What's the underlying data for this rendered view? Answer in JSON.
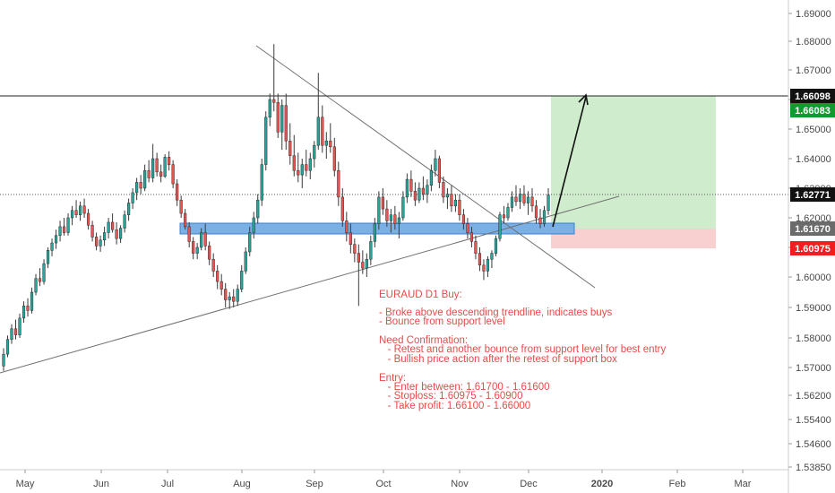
{
  "chart_data": {
    "type": "candlestick",
    "title": "",
    "xlabel": "",
    "ylabel": "",
    "ylim": [
      1.5385,
      1.6985
    ],
    "y_ticks": [
      "1.69000",
      "1.68000",
      "1.67000",
      "1.66000",
      "1.65000",
      "1.64000",
      "1.63000",
      "1.62000",
      "1.61000",
      "1.60000",
      "1.59000",
      "1.58000",
      "1.57000",
      "1.56200",
      "1.55400",
      "1.54600",
      "1.53850"
    ],
    "x_ticks": [
      "May",
      "Jun",
      "Jul",
      "Aug",
      "Sep",
      "Oct",
      "Nov",
      "Dec",
      "2020",
      "Feb",
      "Mar"
    ],
    "grid": false,
    "candles": [
      {
        "o": 1.5705,
        "h": 1.5765,
        "l": 1.569,
        "c": 1.5745
      },
      {
        "o": 1.5745,
        "h": 1.5808,
        "l": 1.5735,
        "c": 1.5795
      },
      {
        "o": 1.5795,
        "h": 1.5845,
        "l": 1.578,
        "c": 1.583
      },
      {
        "o": 1.583,
        "h": 1.586,
        "l": 1.5795,
        "c": 1.581
      },
      {
        "o": 1.581,
        "h": 1.588,
        "l": 1.58,
        "c": 1.5865
      },
      {
        "o": 1.5865,
        "h": 1.592,
        "l": 1.585,
        "c": 1.5905
      },
      {
        "o": 1.5905,
        "h": 1.593,
        "l": 1.587,
        "c": 1.589
      },
      {
        "o": 1.589,
        "h": 1.5965,
        "l": 1.588,
        "c": 1.595
      },
      {
        "o": 1.595,
        "h": 1.601,
        "l": 1.594,
        "c": 1.5995
      },
      {
        "o": 1.5995,
        "h": 1.603,
        "l": 1.597,
        "c": 1.5985
      },
      {
        "o": 1.5985,
        "h": 1.606,
        "l": 1.5975,
        "c": 1.6045
      },
      {
        "o": 1.6045,
        "h": 1.61,
        "l": 1.603,
        "c": 1.609
      },
      {
        "o": 1.609,
        "h": 1.613,
        "l": 1.607,
        "c": 1.6115
      },
      {
        "o": 1.6115,
        "h": 1.616,
        "l": 1.6095,
        "c": 1.614
      },
      {
        "o": 1.614,
        "h": 1.619,
        "l": 1.612,
        "c": 1.617
      },
      {
        "o": 1.617,
        "h": 1.62,
        "l": 1.614,
        "c": 1.615
      },
      {
        "o": 1.615,
        "h": 1.6215,
        "l": 1.614,
        "c": 1.62
      },
      {
        "o": 1.62,
        "h": 1.624,
        "l": 1.6175,
        "c": 1.6225
      },
      {
        "o": 1.6225,
        "h": 1.626,
        "l": 1.62,
        "c": 1.621
      },
      {
        "o": 1.621,
        "h": 1.6255,
        "l": 1.619,
        "c": 1.624
      },
      {
        "o": 1.624,
        "h": 1.6265,
        "l": 1.62,
        "c": 1.6215
      },
      {
        "o": 1.6215,
        "h": 1.623,
        "l": 1.616,
        "c": 1.6175
      },
      {
        "o": 1.6175,
        "h": 1.619,
        "l": 1.612,
        "c": 1.6135
      },
      {
        "o": 1.6135,
        "h": 1.615,
        "l": 1.609,
        "c": 1.6105
      },
      {
        "o": 1.6105,
        "h": 1.614,
        "l": 1.6085,
        "c": 1.6125
      },
      {
        "o": 1.6125,
        "h": 1.617,
        "l": 1.6105,
        "c": 1.615
      },
      {
        "o": 1.615,
        "h": 1.62,
        "l": 1.613,
        "c": 1.6185
      },
      {
        "o": 1.6185,
        "h": 1.6215,
        "l": 1.615,
        "c": 1.616
      },
      {
        "o": 1.616,
        "h": 1.6185,
        "l": 1.611,
        "c": 1.613
      },
      {
        "o": 1.613,
        "h": 1.6175,
        "l": 1.6115,
        "c": 1.6165
      },
      {
        "o": 1.6165,
        "h": 1.6225,
        "l": 1.615,
        "c": 1.621
      },
      {
        "o": 1.621,
        "h": 1.6265,
        "l": 1.619,
        "c": 1.625
      },
      {
        "o": 1.625,
        "h": 1.63,
        "l": 1.623,
        "c": 1.6285
      },
      {
        "o": 1.6285,
        "h": 1.6335,
        "l": 1.626,
        "c": 1.632
      },
      {
        "o": 1.632,
        "h": 1.6345,
        "l": 1.628,
        "c": 1.63
      },
      {
        "o": 1.63,
        "h": 1.638,
        "l": 1.629,
        "c": 1.636
      },
      {
        "o": 1.636,
        "h": 1.6395,
        "l": 1.632,
        "c": 1.6335
      },
      {
        "o": 1.6335,
        "h": 1.645,
        "l": 1.632,
        "c": 1.64
      },
      {
        "o": 1.64,
        "h": 1.642,
        "l": 1.634,
        "c": 1.6355
      },
      {
        "o": 1.6355,
        "h": 1.638,
        "l": 1.632,
        "c": 1.634
      },
      {
        "o": 1.634,
        "h": 1.6415,
        "l": 1.6335,
        "c": 1.6405
      },
      {
        "o": 1.6405,
        "h": 1.6425,
        "l": 1.636,
        "c": 1.638
      },
      {
        "o": 1.638,
        "h": 1.6395,
        "l": 1.63,
        "c": 1.6315
      },
      {
        "o": 1.6315,
        "h": 1.633,
        "l": 1.624,
        "c": 1.626
      },
      {
        "o": 1.626,
        "h": 1.6275,
        "l": 1.62,
        "c": 1.6215
      },
      {
        "o": 1.6215,
        "h": 1.623,
        "l": 1.616,
        "c": 1.617
      },
      {
        "o": 1.617,
        "h": 1.6185,
        "l": 1.61,
        "c": 1.612
      },
      {
        "o": 1.612,
        "h": 1.6135,
        "l": 1.606,
        "c": 1.608
      },
      {
        "o": 1.608,
        "h": 1.6115,
        "l": 1.606,
        "c": 1.61
      },
      {
        "o": 1.61,
        "h": 1.6165,
        "l": 1.609,
        "c": 1.615
      },
      {
        "o": 1.615,
        "h": 1.618,
        "l": 1.609,
        "c": 1.6105
      },
      {
        "o": 1.6105,
        "h": 1.612,
        "l": 1.604,
        "c": 1.606
      },
      {
        "o": 1.606,
        "h": 1.608,
        "l": 1.6,
        "c": 1.602
      },
      {
        "o": 1.602,
        "h": 1.604,
        "l": 1.596,
        "c": 1.5985
      },
      {
        "o": 1.5985,
        "h": 1.601,
        "l": 1.594,
        "c": 1.596
      },
      {
        "o": 1.596,
        "h": 1.598,
        "l": 1.59,
        "c": 1.5925
      },
      {
        "o": 1.5925,
        "h": 1.595,
        "l": 1.5895,
        "c": 1.5935
      },
      {
        "o": 1.5935,
        "h": 1.596,
        "l": 1.59,
        "c": 1.592
      },
      {
        "o": 1.592,
        "h": 1.5975,
        "l": 1.5905,
        "c": 1.596
      },
      {
        "o": 1.596,
        "h": 1.604,
        "l": 1.595,
        "c": 1.602
      },
      {
        "o": 1.602,
        "h": 1.61,
        "l": 1.601,
        "c": 1.6085
      },
      {
        "o": 1.6085,
        "h": 1.617,
        "l": 1.607,
        "c": 1.615
      },
      {
        "o": 1.615,
        "h": 1.622,
        "l": 1.613,
        "c": 1.62
      },
      {
        "o": 1.62,
        "h": 1.628,
        "l": 1.618,
        "c": 1.626
      },
      {
        "o": 1.626,
        "h": 1.64,
        "l": 1.624,
        "c": 1.638
      },
      {
        "o": 1.638,
        "h": 1.656,
        "l": 1.636,
        "c": 1.654
      },
      {
        "o": 1.654,
        "h": 1.662,
        "l": 1.651,
        "c": 1.66
      },
      {
        "o": 1.66,
        "h": 1.679,
        "l": 1.656,
        "c": 1.659
      },
      {
        "o": 1.659,
        "h": 1.662,
        "l": 1.647,
        "c": 1.649
      },
      {
        "o": 1.649,
        "h": 1.66,
        "l": 1.643,
        "c": 1.658
      },
      {
        "o": 1.658,
        "h": 1.662,
        "l": 1.643,
        "c": 1.646
      },
      {
        "o": 1.646,
        "h": 1.652,
        "l": 1.638,
        "c": 1.641
      },
      {
        "o": 1.641,
        "h": 1.648,
        "l": 1.634,
        "c": 1.636
      },
      {
        "o": 1.636,
        "h": 1.642,
        "l": 1.632,
        "c": 1.6345
      },
      {
        "o": 1.6345,
        "h": 1.64,
        "l": 1.63,
        "c": 1.638
      },
      {
        "o": 1.638,
        "h": 1.643,
        "l": 1.634,
        "c": 1.636
      },
      {
        "o": 1.636,
        "h": 1.642,
        "l": 1.633,
        "c": 1.64
      },
      {
        "o": 1.64,
        "h": 1.646,
        "l": 1.637,
        "c": 1.6445
      },
      {
        "o": 1.6445,
        "h": 1.669,
        "l": 1.643,
        "c": 1.654
      },
      {
        "o": 1.654,
        "h": 1.658,
        "l": 1.642,
        "c": 1.6445
      },
      {
        "o": 1.6445,
        "h": 1.649,
        "l": 1.64,
        "c": 1.646
      },
      {
        "o": 1.646,
        "h": 1.652,
        "l": 1.642,
        "c": 1.644
      },
      {
        "o": 1.644,
        "h": 1.647,
        "l": 1.634,
        "c": 1.636
      },
      {
        "o": 1.636,
        "h": 1.639,
        "l": 1.624,
        "c": 1.627
      },
      {
        "o": 1.627,
        "h": 1.63,
        "l": 1.617,
        "c": 1.619
      },
      {
        "o": 1.619,
        "h": 1.622,
        "l": 1.612,
        "c": 1.615
      },
      {
        "o": 1.615,
        "h": 1.618,
        "l": 1.608,
        "c": 1.611
      },
      {
        "o": 1.611,
        "h": 1.613,
        "l": 1.605,
        "c": 1.608
      },
      {
        "o": 1.608,
        "h": 1.611,
        "l": 1.5905,
        "c": 1.605
      },
      {
        "o": 1.605,
        "h": 1.609,
        "l": 1.601,
        "c": 1.603
      },
      {
        "o": 1.603,
        "h": 1.608,
        "l": 1.6,
        "c": 1.606
      },
      {
        "o": 1.606,
        "h": 1.614,
        "l": 1.604,
        "c": 1.612
      },
      {
        "o": 1.612,
        "h": 1.62,
        "l": 1.61,
        "c": 1.618
      },
      {
        "o": 1.618,
        "h": 1.629,
        "l": 1.616,
        "c": 1.627
      },
      {
        "o": 1.627,
        "h": 1.63,
        "l": 1.621,
        "c": 1.623
      },
      {
        "o": 1.623,
        "h": 1.626,
        "l": 1.617,
        "c": 1.619
      },
      {
        "o": 1.619,
        "h": 1.623,
        "l": 1.615,
        "c": 1.621
      },
      {
        "o": 1.621,
        "h": 1.624,
        "l": 1.616,
        "c": 1.618
      },
      {
        "o": 1.618,
        "h": 1.622,
        "l": 1.613,
        "c": 1.62
      },
      {
        "o": 1.62,
        "h": 1.629,
        "l": 1.619,
        "c": 1.627
      },
      {
        "o": 1.627,
        "h": 1.635,
        "l": 1.625,
        "c": 1.633
      },
      {
        "o": 1.633,
        "h": 1.636,
        "l": 1.627,
        "c": 1.629
      },
      {
        "o": 1.629,
        "h": 1.632,
        "l": 1.624,
        "c": 1.626
      },
      {
        "o": 1.626,
        "h": 1.632,
        "l": 1.625,
        "c": 1.63
      },
      {
        "o": 1.63,
        "h": 1.634,
        "l": 1.626,
        "c": 1.628
      },
      {
        "o": 1.628,
        "h": 1.633,
        "l": 1.625,
        "c": 1.631
      },
      {
        "o": 1.631,
        "h": 1.638,
        "l": 1.629,
        "c": 1.636
      },
      {
        "o": 1.636,
        "h": 1.643,
        "l": 1.634,
        "c": 1.64
      },
      {
        "o": 1.64,
        "h": 1.641,
        "l": 1.63,
        "c": 1.632
      },
      {
        "o": 1.632,
        "h": 1.634,
        "l": 1.625,
        "c": 1.627
      },
      {
        "o": 1.627,
        "h": 1.63,
        "l": 1.623,
        "c": 1.628
      },
      {
        "o": 1.628,
        "h": 1.631,
        "l": 1.622,
        "c": 1.624
      },
      {
        "o": 1.624,
        "h": 1.628,
        "l": 1.622,
        "c": 1.626
      },
      {
        "o": 1.626,
        "h": 1.628,
        "l": 1.619,
        "c": 1.621
      },
      {
        "o": 1.621,
        "h": 1.623,
        "l": 1.616,
        "c": 1.618
      },
      {
        "o": 1.618,
        "h": 1.62,
        "l": 1.613,
        "c": 1.615
      },
      {
        "o": 1.615,
        "h": 1.617,
        "l": 1.61,
        "c": 1.612
      },
      {
        "o": 1.612,
        "h": 1.614,
        "l": 1.606,
        "c": 1.608
      },
      {
        "o": 1.608,
        "h": 1.61,
        "l": 1.602,
        "c": 1.604
      },
      {
        "o": 1.604,
        "h": 1.606,
        "l": 1.599,
        "c": 1.602
      },
      {
        "o": 1.602,
        "h": 1.607,
        "l": 1.6,
        "c": 1.606
      },
      {
        "o": 1.606,
        "h": 1.609,
        "l": 1.603,
        "c": 1.608
      },
      {
        "o": 1.608,
        "h": 1.614,
        "l": 1.607,
        "c": 1.613
      },
      {
        "o": 1.613,
        "h": 1.622,
        "l": 1.612,
        "c": 1.621
      },
      {
        "o": 1.621,
        "h": 1.624,
        "l": 1.618,
        "c": 1.62
      },
      {
        "o": 1.62,
        "h": 1.625,
        "l": 1.619,
        "c": 1.6235
      },
      {
        "o": 1.6235,
        "h": 1.629,
        "l": 1.622,
        "c": 1.627
      },
      {
        "o": 1.627,
        "h": 1.631,
        "l": 1.624,
        "c": 1.6255
      },
      {
        "o": 1.6255,
        "h": 1.63,
        "l": 1.623,
        "c": 1.628
      },
      {
        "o": 1.628,
        "h": 1.631,
        "l": 1.624,
        "c": 1.625
      },
      {
        "o": 1.625,
        "h": 1.629,
        "l": 1.621,
        "c": 1.627
      },
      {
        "o": 1.627,
        "h": 1.63,
        "l": 1.622,
        "c": 1.624
      },
      {
        "o": 1.624,
        "h": 1.626,
        "l": 1.618,
        "c": 1.62
      },
      {
        "o": 1.62,
        "h": 1.623,
        "l": 1.6165,
        "c": 1.618
      },
      {
        "o": 1.618,
        "h": 1.624,
        "l": 1.617,
        "c": 1.6225
      },
      {
        "o": 1.6225,
        "h": 1.63,
        "l": 1.621,
        "c": 1.6277
      }
    ],
    "colors": {
      "up": "#26a69a",
      "down": "#ef5350",
      "wick": "#3a3a3a"
    },
    "current_price_label": "1.62771",
    "resistance_label": "1.66098",
    "target_label": "1.66083",
    "entry_label": "1.61670",
    "stop_label": "1.60975",
    "annotation": {
      "title": "EURAUD D1 Buy:",
      "lines": [
        "- Broke above descending trendline, indicates buys",
        "- Bounce from support level",
        "",
        "Need Confirmation:",
        "   - Retest and another bounce from support level for best entry",
        "   - Bullish price action after the retest of support box",
        "",
        "Entry:",
        "   - Enter between: 1.61700 - 1.61600",
        "   - Stoploss: 1.60975 - 1.60900",
        "   - Take profit: 1.66100 - 1.66000"
      ]
    }
  }
}
